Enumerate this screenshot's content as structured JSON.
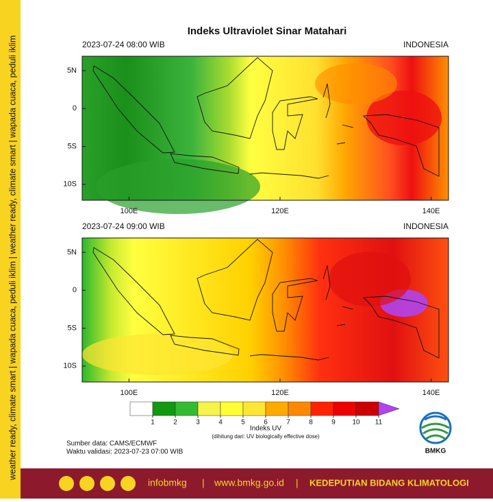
{
  "sidebar_text": "weather ready, climate smart | wapada cuaca, peduli iklim | weather ready, climate smart | wapada cuaca, peduli iklim",
  "title": "Indeks Ultraviolet Sinar Matahari",
  "maps": [
    {
      "timestamp": "2023-07-24  08:00 WIB",
      "region": "INDONESIA"
    },
    {
      "timestamp": "2023-07-24  09:00 WIB",
      "region": "INDONESIA"
    }
  ],
  "axes": {
    "xlim": [
      93.8,
      142.3
    ],
    "ylim": [
      -12.1,
      6.9
    ],
    "xticks": [
      {
        "value": 100,
        "label": "100E"
      },
      {
        "value": 120,
        "label": "120E"
      },
      {
        "value": 140,
        "label": "140E"
      }
    ],
    "yticks": [
      {
        "value": 5,
        "label": "5N"
      },
      0,
      {
        "value": -5,
        "label": "5S"
      },
      {
        "value": -10,
        "label": "10S"
      }
    ]
  },
  "colorbar": {
    "ticks": [
      1,
      2,
      3,
      4,
      5,
      6,
      7,
      8,
      9,
      10,
      11
    ],
    "colors": [
      "#ffffff",
      "#119911",
      "#33bb33",
      "#f4f44a",
      "#ffff33",
      "#ffe633",
      "#ffaa00",
      "#ff8800",
      "#ff2200",
      "#ee0000",
      "#cc0000",
      "#b044ee"
    ],
    "label": "Indeks UV",
    "note": "(dihitung dari: UV biologically effective dose)"
  },
  "source": "Sumber data: CAMS/ECMWF",
  "validity": "Waktu validasi: 2023-07-23 07:00 WIB",
  "logo": "BMKG",
  "footer": {
    "social_handle": "infobmkg",
    "separator": "|",
    "website": "www.bmkg.go.id",
    "department": "KEDEPUTIAN BIDANG KLIMATOLOGI"
  }
}
